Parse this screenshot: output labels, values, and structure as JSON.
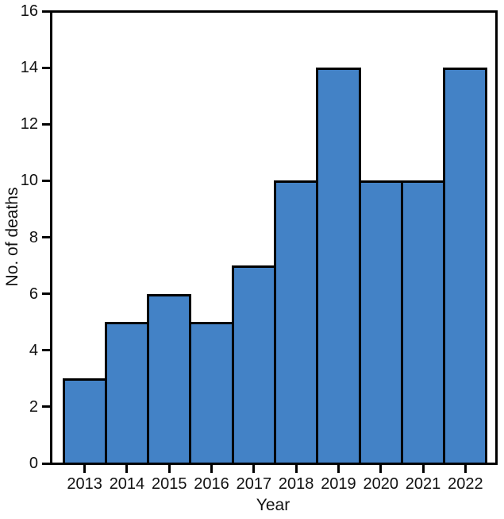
{
  "chart_data": {
    "type": "bar",
    "title": "",
    "categories": [
      "2013",
      "2014",
      "2015",
      "2016",
      "2017",
      "2018",
      "2019",
      "2020",
      "2021",
      "2022"
    ],
    "values": [
      3,
      5,
      6,
      5,
      7,
      10,
      14,
      10,
      10,
      14
    ],
    "xlabel": "Year",
    "ylabel": "No. of deaths",
    "ylim": [
      0,
      16
    ],
    "yticks": [
      0,
      2,
      4,
      6,
      8,
      10,
      12,
      14,
      16
    ],
    "grid": false,
    "legend": null,
    "bar_color": "#4382C6",
    "bar_border_color": "#000000",
    "axis_color": "#000000",
    "text_color": "#111111",
    "background_color": "#ffffff"
  }
}
